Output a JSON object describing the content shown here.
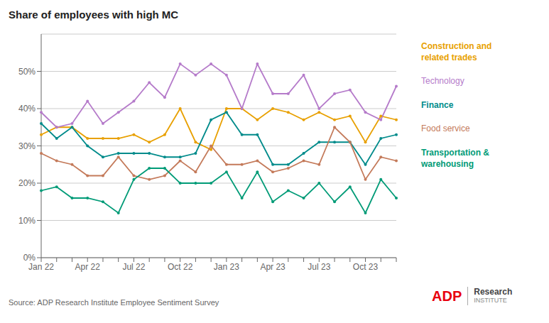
{
  "chart_data": {
    "type": "line",
    "title": "Share of employees with high MC",
    "categories": [
      "Jan 22",
      null,
      null,
      "Apr 22",
      null,
      null,
      "Jul 22",
      null,
      null,
      "Oct 22",
      null,
      null,
      "Jan 23",
      null,
      null,
      "Apr 23",
      null,
      null,
      "Jul 23",
      null,
      null,
      "Oct 23",
      null,
      null
    ],
    "series": [
      {
        "name": "Construction and\nrelated trades",
        "color": "#E8A000",
        "values": [
          33,
          35,
          35,
          32,
          32,
          32,
          33,
          31,
          33,
          40,
          31,
          29,
          40,
          40,
          37,
          40,
          39,
          37,
          39,
          37,
          38,
          31,
          38,
          37
        ]
      },
      {
        "name": "Technology",
        "color": "#B57BCA",
        "values": [
          39,
          35,
          36,
          42,
          36,
          39,
          42,
          47,
          43,
          52,
          49,
          52,
          49,
          40,
          52,
          44,
          44,
          49,
          40,
          44,
          45,
          39,
          37,
          46
        ]
      },
      {
        "name": "Finance",
        "color": "#008B8B",
        "values": [
          36,
          32,
          35,
          30,
          27,
          28,
          28,
          28,
          27,
          27,
          28,
          37,
          39,
          33,
          33,
          25,
          25,
          28,
          31,
          31,
          31,
          25,
          32,
          33
        ]
      },
      {
        "name": "Food service",
        "color": "#C47A5A",
        "values": [
          28,
          26,
          25,
          22,
          22,
          27,
          22,
          21,
          22,
          26,
          23,
          30,
          25,
          25,
          26,
          23,
          24,
          26,
          25,
          35,
          31,
          21,
          27,
          26
        ]
      },
      {
        "name": "Transportation &\nwarehousing",
        "color": "#009B77",
        "values": [
          18,
          19,
          16,
          16,
          15,
          12,
          21,
          24,
          24,
          20,
          20,
          20,
          23,
          16,
          23,
          15,
          18,
          16,
          20,
          15,
          19,
          12,
          21,
          16
        ]
      }
    ],
    "ylim": [
      0,
      60
    ],
    "yticks": [
      {
        "value": 0,
        "label": "0%"
      },
      {
        "value": 10,
        "label": "10%"
      },
      {
        "value": 20,
        "label": "20%"
      },
      {
        "value": 30,
        "label": "30%"
      },
      {
        "value": 40,
        "label": "40%"
      },
      {
        "value": 50,
        "label": "50%"
      }
    ],
    "grid": true,
    "marker": "circle",
    "annotations": [
      {
        "text": "Source: ADP Research Institute Employee Sentiment Survey"
      },
      {
        "text": "ADP",
        "color": "#E8000D"
      },
      {
        "text": "Research"
      },
      {
        "text": "INSTITUTE"
      }
    ]
  }
}
